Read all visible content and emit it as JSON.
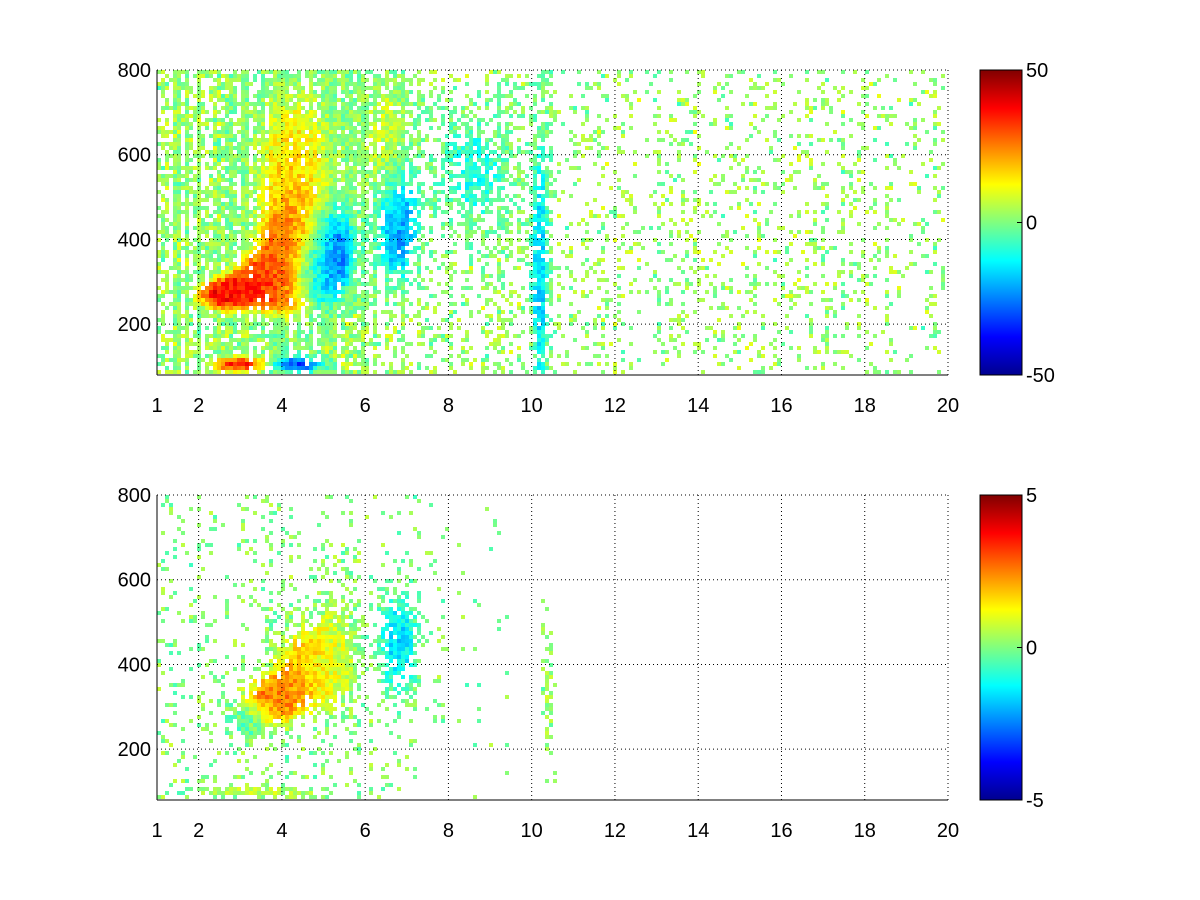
{
  "chart_data": [
    {
      "type": "heatmap",
      "title": "",
      "xlabel": "",
      "ylabel": "",
      "xlim": [
        1,
        20
      ],
      "ylim": [
        80,
        800
      ],
      "x_ticks": [
        1,
        2,
        4,
        6,
        8,
        10,
        12,
        14,
        16,
        18,
        20
      ],
      "y_ticks": [
        200,
        400,
        600,
        800
      ],
      "grid": "dotted",
      "colorbar": {
        "range": [
          -50,
          50
        ],
        "ticks": [
          -50,
          0,
          50
        ],
        "colormap": "jet"
      },
      "blobs": [
        {
          "x": 2.6,
          "y": 270,
          "sx": 0.5,
          "sy": 28,
          "value": 38
        },
        {
          "x": 3.5,
          "y": 300,
          "sx": 0.55,
          "sy": 45,
          "value": 32
        },
        {
          "x": 4.2,
          "y": 360,
          "sx": 0.45,
          "sy": 80,
          "value": 34
        },
        {
          "x": 5.2,
          "y": 370,
          "sx": 0.4,
          "sy": 70,
          "value": -32
        },
        {
          "x": 4.7,
          "y": 320,
          "sx": 0.35,
          "sy": 45,
          "value": -22
        },
        {
          "x": 4.3,
          "y": 560,
          "sx": 0.7,
          "sy": 150,
          "value": 16
        },
        {
          "x": 3.0,
          "y": 105,
          "sx": 0.55,
          "sy": 14,
          "value": 36
        },
        {
          "x": 4.3,
          "y": 105,
          "sx": 0.45,
          "sy": 14,
          "value": -35
        },
        {
          "x": 6.8,
          "y": 430,
          "sx": 0.35,
          "sy": 90,
          "value": -26
        },
        {
          "x": 6.5,
          "y": 620,
          "sx": 0.4,
          "sy": 120,
          "value": 8
        },
        {
          "x": 8.6,
          "y": 560,
          "sx": 0.6,
          "sy": 90,
          "value": -10
        },
        {
          "x": 10.2,
          "y": 330,
          "sx": 0.15,
          "sy": 220,
          "value": -18
        }
      ],
      "background_value": 8
    },
    {
      "type": "heatmap",
      "title": "",
      "xlabel": "",
      "ylabel": "",
      "xlim": [
        1,
        20
      ],
      "ylim": [
        80,
        800
      ],
      "x_ticks": [
        1,
        2,
        4,
        6,
        8,
        10,
        12,
        14,
        16,
        18,
        20
      ],
      "y_ticks": [
        200,
        400,
        600,
        800
      ],
      "grid": "dotted",
      "colorbar": {
        "range": [
          -5,
          5
        ],
        "ticks": [
          -5,
          0,
          5
        ],
        "colormap": "jet"
      },
      "blobs": [
        {
          "x": 3.8,
          "y": 320,
          "sx": 0.5,
          "sy": 45,
          "value": 2.8
        },
        {
          "x": 4.6,
          "y": 400,
          "sx": 0.5,
          "sy": 70,
          "value": 1.8
        },
        {
          "x": 5.3,
          "y": 420,
          "sx": 0.4,
          "sy": 90,
          "value": 0.6
        },
        {
          "x": 3.2,
          "y": 270,
          "sx": 0.4,
          "sy": 30,
          "value": -0.8
        },
        {
          "x": 6.8,
          "y": 450,
          "sx": 0.35,
          "sy": 90,
          "value": -1.6
        },
        {
          "x": 3.5,
          "y": 100,
          "sx": 1.0,
          "sy": 12,
          "value": 0.6
        },
        {
          "x": 10.4,
          "y": 330,
          "sx": 0.08,
          "sy": 100,
          "value": 0.4
        }
      ],
      "background_value": 0.3
    }
  ]
}
